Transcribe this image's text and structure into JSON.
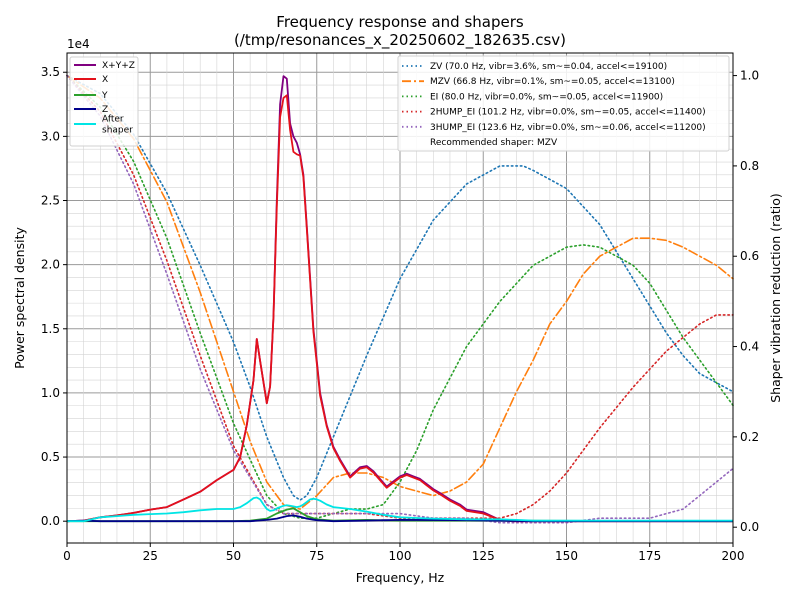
{
  "chart_data": {
    "type": "line",
    "title": "Frequency response and shapers",
    "subtitle": "(/tmp/resonances_x_20250602_182635.csv)",
    "xlabel": "Frequency, Hz",
    "ylabel": "Power spectral density",
    "ylabel_right": "Shaper vibration reduction (ratio)",
    "xlim": [
      0,
      200
    ],
    "ylim": [
      -1700,
      36500
    ],
    "ylim_right": [
      -0.035,
      1.05
    ],
    "y_multiplier": "1e4",
    "x_ticks": [
      0,
      25,
      50,
      75,
      100,
      125,
      150,
      175,
      200
    ],
    "y_ticks": [
      0,
      5000,
      10000,
      15000,
      20000,
      25000,
      30000,
      35000
    ],
    "y_tick_labels": [
      "0.0",
      "0.5",
      "1.0",
      "1.5",
      "2.0",
      "2.5",
      "3.0",
      "3.5"
    ],
    "y_right_ticks": [
      0,
      0.2,
      0.4,
      0.6,
      0.8,
      1.0
    ],
    "y_right_tick_labels": [
      "0.0",
      "0.2",
      "0.4",
      "0.6",
      "0.8",
      "1.0"
    ],
    "grid": true,
    "psd_series": [
      {
        "name": "X+Y+Z",
        "color": "#800080",
        "style": "solid",
        "width": 1.8,
        "x": [
          0,
          5,
          10,
          15,
          20,
          25,
          30,
          35,
          40,
          45,
          50,
          52,
          54,
          56,
          57,
          58,
          60,
          61,
          62,
          63,
          64,
          65,
          66,
          67,
          68,
          69,
          70,
          71,
          72,
          73,
          74,
          75,
          76,
          78,
          80,
          82,
          85,
          88,
          90,
          92,
          94,
          96,
          98,
          100,
          102,
          104,
          106,
          108,
          110,
          112,
          115,
          118,
          120,
          125,
          130,
          134,
          136,
          140,
          150,
          200
        ],
        "y": [
          0,
          50,
          300,
          450,
          650,
          900,
          1100,
          1700,
          2300,
          3200,
          4000,
          5000,
          7500,
          11000,
          14200,
          12500,
          9200,
          10500,
          16000,
          25000,
          32500,
          34700,
          34500,
          31000,
          30000,
          29500,
          28600,
          27000,
          23000,
          19000,
          15000,
          12500,
          10000,
          7500,
          5800,
          4800,
          3500,
          4200,
          4300,
          3900,
          3300,
          2700,
          3100,
          3500,
          3700,
          3500,
          3300,
          2900,
          2500,
          2200,
          1700,
          1300,
          900,
          700,
          100,
          0,
          0,
          0,
          0,
          0
        ]
      },
      {
        "name": "X",
        "color": "#e4111b",
        "style": "solid",
        "width": 1.8,
        "x": [
          0,
          5,
          10,
          15,
          20,
          25,
          30,
          35,
          40,
          45,
          50,
          52,
          54,
          56,
          57,
          58,
          60,
          61,
          62,
          63,
          64,
          65,
          66,
          67,
          68,
          69,
          70,
          71,
          72,
          73,
          74,
          75,
          76,
          78,
          80,
          82,
          85,
          88,
          90,
          92,
          94,
          96,
          98,
          100,
          102,
          104,
          106,
          108,
          110,
          112,
          115,
          118,
          120,
          125,
          130,
          134,
          136,
          140,
          150,
          200
        ],
        "y": [
          0,
          50,
          300,
          450,
          650,
          900,
          1100,
          1700,
          2300,
          3200,
          4000,
          5000,
          7500,
          11000,
          14200,
          12500,
          9200,
          10500,
          16000,
          24500,
          31500,
          33000,
          33200,
          30500,
          28800,
          28600,
          28500,
          26800,
          22800,
          18800,
          14800,
          12300,
          9800,
          7400,
          5700,
          4700,
          3400,
          4100,
          4200,
          3800,
          3200,
          2600,
          3000,
          3400,
          3600,
          3400,
          3200,
          2800,
          2400,
          2100,
          1600,
          1200,
          800,
          600,
          100,
          0,
          0,
          0,
          0,
          0
        ]
      },
      {
        "name": "Y",
        "color": "#2ca02c",
        "style": "solid",
        "width": 1.8,
        "x": [
          0,
          50,
          55,
          60,
          63,
          66,
          68,
          70,
          72,
          75,
          80,
          90,
          100,
          120,
          200
        ],
        "y": [
          0,
          0,
          50,
          200,
          600,
          900,
          1000,
          700,
          400,
          150,
          50,
          100,
          50,
          50,
          0
        ]
      },
      {
        "name": "Z",
        "color": "#00008b",
        "style": "solid",
        "width": 1.8,
        "x": [
          0,
          5,
          10,
          20,
          40,
          55,
          60,
          63,
          66,
          68,
          70,
          72,
          75,
          80,
          90,
          100,
          120,
          140,
          200
        ],
        "y": [
          0,
          50,
          0,
          0,
          0,
          0,
          100,
          200,
          400,
          450,
          350,
          200,
          80,
          0,
          50,
          100,
          80,
          0,
          0
        ]
      },
      {
        "name": "After\nshaper",
        "color": "#00e5e5",
        "style": "solid",
        "width": 1.8,
        "x": [
          0,
          5,
          10,
          15,
          20,
          25,
          30,
          35,
          40,
          45,
          50,
          52,
          54,
          56,
          57,
          58,
          59,
          60,
          61,
          62,
          63,
          64,
          65,
          66,
          67,
          68,
          69,
          70,
          71,
          72,
          73,
          74,
          75,
          76,
          78,
          80,
          85,
          90,
          95,
          100,
          105,
          110,
          120,
          130,
          135,
          140,
          150,
          200
        ],
        "y": [
          0,
          0,
          300,
          400,
          500,
          550,
          600,
          700,
          850,
          950,
          950,
          1100,
          1400,
          1800,
          1850,
          1700,
          1300,
          950,
          800,
          850,
          1000,
          1100,
          1200,
          1250,
          1200,
          1150,
          1100,
          1150,
          1300,
          1500,
          1700,
          1750,
          1700,
          1600,
          1300,
          1100,
          950,
          750,
          500,
          300,
          250,
          200,
          150,
          150,
          100,
          50,
          50,
          50
        ]
      }
    ],
    "shaper_series": [
      {
        "name": "ZV (70.0 Hz, vibr=3.6%, sm~=0.04, accel<=19100)",
        "color": "#1f77b4",
        "style": "dotted",
        "x": [
          0,
          10,
          20,
          30,
          40,
          50,
          55,
          60,
          65,
          68,
          70,
          72,
          75,
          80,
          90,
          100,
          110,
          120,
          130,
          135,
          137,
          140,
          150,
          160,
          170,
          180,
          185,
          190,
          195,
          200
        ],
        "y": [
          1.0,
          0.96,
          0.87,
          0.74,
          0.58,
          0.41,
          0.31,
          0.2,
          0.11,
          0.07,
          0.06,
          0.07,
          0.11,
          0.2,
          0.38,
          0.55,
          0.68,
          0.76,
          0.8,
          0.8,
          0.8,
          0.79,
          0.75,
          0.67,
          0.55,
          0.43,
          0.38,
          0.34,
          0.32,
          0.3
        ]
      },
      {
        "name": "MZV (66.8 Hz, vibr=0.1%, sm~=0.05, accel<=13100)",
        "color": "#ff7f0e",
        "style": "dashdot",
        "x": [
          0,
          10,
          20,
          30,
          40,
          50,
          55,
          60,
          65,
          70,
          75,
          80,
          85,
          90,
          95,
          100,
          105,
          110,
          115,
          120,
          125,
          130,
          135,
          140,
          145,
          150,
          155,
          160,
          165,
          170,
          175,
          180,
          185,
          190,
          195,
          200
        ],
        "y": [
          1.0,
          0.95,
          0.86,
          0.72,
          0.52,
          0.3,
          0.19,
          0.1,
          0.05,
          0.04,
          0.07,
          0.11,
          0.12,
          0.12,
          0.11,
          0.09,
          0.08,
          0.07,
          0.08,
          0.1,
          0.14,
          0.22,
          0.3,
          0.37,
          0.45,
          0.5,
          0.56,
          0.6,
          0.62,
          0.64,
          0.64,
          0.635,
          0.62,
          0.6,
          0.58,
          0.55
        ]
      },
      {
        "name": "EI (80.0 Hz, vibr=0.0%, sm~=0.05, accel<=11900)",
        "color": "#2ca02c",
        "style": "dotted",
        "x": [
          0,
          10,
          20,
          30,
          40,
          50,
          60,
          65,
          70,
          75,
          80,
          85,
          90,
          95,
          100,
          105,
          110,
          115,
          120,
          130,
          140,
          150,
          155,
          160,
          165,
          170,
          175,
          180,
          185,
          190,
          195,
          200
        ],
        "y": [
          1.0,
          0.93,
          0.81,
          0.64,
          0.43,
          0.23,
          0.07,
          0.03,
          0.02,
          0.02,
          0.03,
          0.04,
          0.04,
          0.05,
          0.1,
          0.17,
          0.26,
          0.33,
          0.4,
          0.5,
          0.58,
          0.62,
          0.625,
          0.62,
          0.6,
          0.58,
          0.54,
          0.48,
          0.42,
          0.37,
          0.32,
          0.27
        ]
      },
      {
        "name": "2HUMP_EI (101.2 Hz, vibr=0.0%, sm~=0.05, accel<=11400)",
        "color": "#d62728",
        "style": "dotted",
        "x": [
          0,
          10,
          20,
          30,
          40,
          50,
          60,
          65,
          70,
          75,
          80,
          90,
          100,
          110,
          120,
          130,
          135,
          140,
          145,
          150,
          160,
          170,
          180,
          190,
          195,
          200
        ],
        "y": [
          1.0,
          0.92,
          0.78,
          0.59,
          0.38,
          0.18,
          0.05,
          0.03,
          0.03,
          0.03,
          0.03,
          0.03,
          0.02,
          0.02,
          0.02,
          0.02,
          0.03,
          0.05,
          0.08,
          0.12,
          0.22,
          0.31,
          0.39,
          0.45,
          0.47,
          0.47
        ]
      },
      {
        "name": "3HUMP_EI (123.6 Hz, vibr=0.0%, sm~=0.06, accel<=11200)",
        "color": "#9467bd",
        "style": "dotted",
        "x": [
          0,
          10,
          20,
          30,
          40,
          50,
          60,
          65,
          70,
          80,
          90,
          100,
          110,
          120,
          130,
          140,
          150,
          160,
          170,
          175,
          180,
          185,
          190,
          195,
          200
        ],
        "y": [
          1.0,
          0.91,
          0.76,
          0.56,
          0.35,
          0.17,
          0.05,
          0.03,
          0.03,
          0.03,
          0.03,
          0.03,
          0.02,
          0.02,
          0.01,
          0.01,
          0.01,
          0.02,
          0.02,
          0.02,
          0.03,
          0.04,
          0.07,
          0.1,
          0.13
        ]
      }
    ],
    "legend_left": [
      "X+Y+Z",
      "X",
      "Y",
      "Z",
      "After\nshaper"
    ],
    "legend_right": [
      "ZV (70.0 Hz, vibr=3.6%, sm~=0.04, accel<=19100)",
      "MZV (66.8 Hz, vibr=0.1%, sm~=0.05, accel<=13100)",
      "EI (80.0 Hz, vibr=0.0%, sm~=0.05, accel<=11900)",
      "2HUMP_EI (101.2 Hz, vibr=0.0%, sm~=0.05, accel<=11400)",
      "3HUMP_EI (123.6 Hz, vibr=0.0%, sm~=0.06, accel<=11200)",
      "Recommended shaper: MZV"
    ],
    "legend_left_placement": "top-left",
    "legend_right_placement": "top-right"
  }
}
